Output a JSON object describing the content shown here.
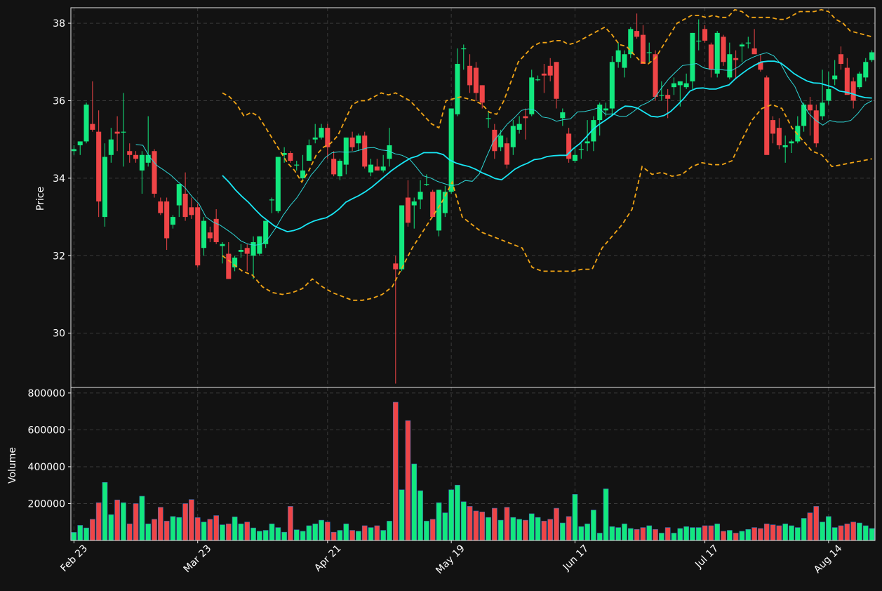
{
  "chart_data": {
    "type": "candlestick",
    "price_panel": {
      "ylabel": "Price",
      "ylim": [
        28.6,
        38.4
      ],
      "yticks": [
        30,
        32,
        34,
        36,
        38
      ],
      "series": [
        {
          "name": "candles",
          "kind": "ohlc"
        },
        {
          "name": "SMA-short",
          "color": "#2fd6d6"
        },
        {
          "name": "SMA-long",
          "color": "#18e7f5"
        },
        {
          "name": "Bollinger upper",
          "color": "#f2a516",
          "style": "dashed"
        },
        {
          "name": "Bollinger lower",
          "color": "#f2a516",
          "style": "dashed"
        }
      ]
    },
    "volume_panel": {
      "ylabel": "Volume",
      "ylim": [
        0,
        830000
      ],
      "yticks": [
        200000,
        400000,
        600000,
        800000
      ]
    },
    "xlabels": [
      "Feb 23",
      "Mar 23",
      "Apr 21",
      "May 19",
      "Jun 17",
      "Jul 17",
      "Aug 14"
    ],
    "grid": true,
    "colors": {
      "up": "#12e87e",
      "down": "#ef4547",
      "background": "#121212",
      "grid": "#3a3a3a"
    },
    "close": [
      34.7,
      34.95,
      35.9,
      35.25,
      33.4,
      34.55,
      35.0,
      34.55,
      35.15,
      35.2,
      34.35,
      34.6,
      34.6,
      34.5,
      34.72,
      33.6,
      33.1,
      33.05,
      32.45,
      33.0,
      33.35,
      33.85,
      33.0,
      33.05,
      31.75,
      32.9,
      32.4,
      32.4,
      32.27,
      31.4,
      31.7,
      32.15,
      32.05,
      32.0,
      32.35,
      32.5,
      32.9,
      33.45,
      34.55,
      34.65,
      34.45,
      34.35,
      34.2,
      34.85,
      35.05,
      35.3,
      34.8,
      34.5,
      34.1,
      35.05,
      34.8,
      35.1,
      35.1,
      34.3,
      34.35,
      34.2,
      34.3,
      34.85,
      32.0,
      31.65,
      32.85,
      33.5,
      32.75,
      33.4,
      33.85,
      33.85,
      32.65,
      33.7,
      33.1,
      35.8,
      36.95,
      37.35,
      36.4,
      36.85,
      35.95,
      35.55,
      35.05,
      34.7,
      35.1,
      34.35,
      35.35,
      35.35,
      35.55,
      36.6,
      36.55,
      36.65,
      36.9,
      36.05,
      35.7,
      34.5,
      34.6,
      34.75,
      34.95,
      35.9,
      35.75,
      35.8,
      37.0,
      37.3,
      36.85,
      37.85,
      37.65,
      36.95,
      36.95,
      36.1,
      36.0,
      36.45,
      36.5,
      37.75,
      37.55,
      36.9,
      37.8,
      36.8,
      37.15,
      36.6,
      37.4,
      37.5,
      37.2,
      36.8,
      34.6,
      35.55,
      34.85,
      34.85,
      34.95,
      35.35,
      35.9,
      35.5,
      34.9,
      35.6,
      36.65,
      36.95,
      36.25,
      36.35,
      36.7,
      36.95,
      37.3
    ],
    "sma_short_start": 10,
    "sma_short": [
      34.87,
      34.85,
      34.54,
      34.33,
      34.21,
      34.08,
      33.91,
      33.76,
      33.53,
      33.34,
      33.0,
      32.87,
      32.79,
      32.67,
      32.54,
      32.38,
      32.3,
      32.27,
      32.3,
      32.47,
      32.73,
      33.04,
      33.29,
      33.5,
      33.78,
      34.08,
      34.29,
      34.53,
      34.66,
      34.68,
      34.67,
      34.68,
      34.73,
      34.78,
      34.79,
      34.73,
      34.71,
      34.63,
      34.59,
      34.5,
      34.29,
      34.06,
      34.01,
      33.92,
      33.86,
      33.8,
      33.84,
      33.94,
      33.92,
      34.11,
      34.54,
      34.95,
      35.17,
      35.4,
      35.56,
      35.75,
      35.79,
      35.75,
      35.58,
      35.55,
      35.47,
      35.51,
      35.53,
      35.71,
      35.72,
      35.76,
      35.82,
      35.65,
      35.66,
      35.6,
      35.6,
      35.72,
      35.87,
      35.95,
      36.07,
      36.33,
      36.56,
      36.74,
      36.91,
      36.93,
      36.96,
      36.85,
      36.81,
      36.81,
      36.79,
      36.78,
      36.88,
      37.03,
      37.12,
      37.19,
      37.24,
      37.16,
      36.95,
      36.62,
      36.37,
      35.96,
      35.67,
      35.49,
      35.37,
      35.49,
      35.45,
      35.45,
      35.49,
      35.67,
      35.9,
      36.0
    ],
    "sma_long_start": 24,
    "sma_long": [
      34.07,
      33.9,
      33.7,
      33.53,
      33.38,
      33.2,
      33.03,
      32.9,
      32.77,
      32.69,
      32.62,
      32.65,
      32.71,
      32.81,
      32.89,
      32.94,
      32.98,
      33.08,
      33.21,
      33.38,
      33.47,
      33.55,
      33.65,
      33.77,
      33.91,
      34.05,
      34.19,
      34.31,
      34.42,
      34.52,
      34.57,
      34.66,
      34.66,
      34.66,
      34.61,
      34.47,
      34.39,
      34.34,
      34.3,
      34.23,
      34.14,
      34.07,
      33.99,
      33.96,
      34.09,
      34.23,
      34.32,
      34.39,
      34.48,
      34.5,
      34.56,
      34.58,
      34.59,
      34.59,
      34.76,
      34.89,
      35.06,
      35.25,
      35.39,
      35.5,
      35.62,
      35.76,
      35.86,
      35.85,
      35.8,
      35.7,
      35.6,
      35.58,
      35.62,
      35.72,
      35.88,
      36.05,
      36.25,
      36.32,
      36.33,
      36.3,
      36.3,
      36.36,
      36.41,
      36.57,
      36.7,
      36.82,
      36.92,
      37.0,
      37.02,
      37.02,
      36.97,
      36.84,
      36.7,
      36.6,
      36.51,
      36.46,
      36.45,
      36.4,
      36.35,
      36.25,
      36.22,
      36.18,
      36.12,
      36.08,
      36.07
    ],
    "bb_upper": [
      36.2,
      36.1,
      35.9,
      35.6,
      35.7,
      35.6,
      35.3,
      35.0,
      34.7,
      34.4,
      34.2,
      33.9,
      34.2,
      34.6,
      34.8,
      34.9,
      35.1,
      35.5,
      35.9,
      36.0,
      36.0,
      36.1,
      36.2,
      36.15,
      36.2,
      36.1,
      36.0,
      35.8,
      35.6,
      35.4,
      35.3,
      36.0,
      36.05,
      36.1,
      36.05,
      36.0,
      35.9,
      35.7,
      35.65,
      36.0,
      36.5,
      37.0,
      37.2,
      37.4,
      37.5,
      37.5,
      37.55,
      37.55,
      37.45,
      37.5,
      37.6,
      37.7,
      37.8,
      37.9,
      37.7,
      37.45,
      37.4,
      37.2,
      37.0,
      36.95,
      37.1,
      37.4,
      37.7,
      38.0,
      38.1,
      38.2,
      38.2,
      38.15,
      38.2,
      38.15,
      38.15,
      38.35,
      38.3,
      38.15,
      38.15,
      38.15,
      38.15,
      38.1,
      38.1,
      38.2,
      38.3,
      38.3,
      38.3,
      38.35,
      38.3,
      38.1,
      38.0,
      37.8,
      37.75,
      37.7,
      37.65
    ],
    "bb_lower": [
      32.0,
      31.8,
      31.6,
      31.5,
      31.2,
      31.05,
      31.0,
      31.05,
      31.15,
      31.4,
      31.2,
      31.05,
      30.95,
      30.85,
      30.85,
      30.9,
      31.0,
      31.2,
      31.7,
      32.2,
      32.6,
      33.0,
      33.4,
      33.9,
      33.0,
      32.8,
      32.6,
      32.5,
      32.4,
      32.3,
      32.2,
      31.7,
      31.6,
      31.6,
      31.6,
      31.6,
      31.65,
      31.65,
      32.2,
      32.5,
      32.8,
      33.2,
      34.3,
      34.1,
      34.15,
      34.05,
      34.1,
      34.3,
      34.4,
      34.35,
      34.35,
      34.45,
      35.0,
      35.5,
      35.8,
      35.9,
      35.8,
      35.3,
      35.0,
      34.7,
      34.6,
      34.3,
      34.35,
      34.4,
      34.45,
      34.5
    ],
    "bars": [
      [
        34.7,
        34.85,
        34.6,
        34.75,
        44000
      ],
      [
        34.85,
        34.95,
        34.6,
        34.95,
        82000
      ],
      [
        34.95,
        35.95,
        34.9,
        35.9,
        68000
      ],
      [
        35.4,
        36.5,
        35.2,
        35.25,
        115000
      ],
      [
        35.2,
        35.75,
        33.0,
        33.4,
        205000
      ],
      [
        33.0,
        34.9,
        32.75,
        34.55,
        315000
      ],
      [
        34.6,
        35.3,
        34.4,
        35.0,
        140000
      ],
      [
        35.2,
        35.6,
        34.7,
        35.15,
        220000
      ],
      [
        35.2,
        36.2,
        34.3,
        35.2,
        205000
      ],
      [
        34.7,
        34.9,
        34.4,
        34.6,
        90000
      ],
      [
        34.6,
        34.7,
        34.4,
        34.5,
        200000
      ],
      [
        34.2,
        34.7,
        33.6,
        34.6,
        240000
      ],
      [
        34.4,
        35.6,
        34.3,
        34.6,
        90000
      ],
      [
        34.7,
        34.75,
        33.5,
        33.6,
        115000
      ],
      [
        33.4,
        33.5,
        33.05,
        33.1,
        180000
      ],
      [
        33.4,
        33.5,
        32.15,
        32.45,
        105000
      ],
      [
        32.8,
        33.05,
        32.7,
        33.0,
        130000
      ],
      [
        33.3,
        33.85,
        33.0,
        33.85,
        125000
      ],
      [
        33.6,
        34.15,
        32.9,
        33.0,
        200000
      ],
      [
        33.25,
        33.5,
        32.95,
        33.05,
        222000
      ],
      [
        33.25,
        33.35,
        31.7,
        31.75,
        124000
      ],
      [
        32.2,
        33.0,
        32.0,
        32.9,
        100000
      ],
      [
        32.6,
        32.75,
        32.35,
        32.45,
        115000
      ],
      [
        32.95,
        33.2,
        32.3,
        32.35,
        135000
      ],
      [
        32.25,
        32.35,
        31.8,
        32.3,
        85000
      ],
      [
        32.05,
        32.35,
        31.4,
        31.4,
        90000
      ],
      [
        31.7,
        32.0,
        31.6,
        31.95,
        128000
      ],
      [
        32.1,
        32.3,
        31.95,
        32.15,
        90000
      ],
      [
        32.2,
        32.3,
        31.6,
        32.05,
        100000
      ],
      [
        32.0,
        32.5,
        31.4,
        32.35,
        68000
      ],
      [
        32.05,
        32.5,
        32.0,
        32.5,
        50000
      ],
      [
        32.3,
        32.9,
        32.2,
        32.9,
        55000
      ],
      [
        33.45,
        33.5,
        33.1,
        33.45,
        90000
      ],
      [
        33.15,
        34.55,
        33.1,
        34.55,
        70000
      ],
      [
        34.6,
        34.8,
        34.4,
        34.65,
        45000
      ],
      [
        34.65,
        34.7,
        34.4,
        34.45,
        185000
      ],
      [
        34.35,
        34.45,
        34.2,
        34.35,
        58000
      ],
      [
        34.0,
        34.6,
        33.95,
        34.2,
        50000
      ],
      [
        34.45,
        35.0,
        34.45,
        34.85,
        80000
      ],
      [
        35.0,
        35.4,
        34.9,
        35.05,
        90000
      ],
      [
        35.05,
        35.4,
        35.0,
        35.3,
        110000
      ],
      [
        35.3,
        35.4,
        34.5,
        34.8,
        100000
      ],
      [
        34.5,
        34.7,
        34.05,
        34.1,
        45000
      ],
      [
        34.05,
        34.5,
        33.95,
        34.45,
        55000
      ],
      [
        34.35,
        35.05,
        34.1,
        35.05,
        90000
      ],
      [
        35.05,
        35.2,
        34.7,
        34.8,
        55000
      ],
      [
        34.9,
        35.15,
        34.7,
        35.1,
        50000
      ],
      [
        35.1,
        35.2,
        34.25,
        34.3,
        80000
      ],
      [
        34.15,
        34.5,
        34.05,
        34.35,
        70000
      ],
      [
        34.3,
        34.5,
        34.2,
        34.2,
        80000
      ],
      [
        34.2,
        34.6,
        34.15,
        34.3,
        55000
      ],
      [
        34.5,
        35.3,
        34.3,
        34.85,
        105000
      ],
      [
        31.8,
        32.0,
        28.7,
        31.65,
        750000
      ],
      [
        31.65,
        33.3,
        31.6,
        33.3,
        275000
      ],
      [
        33.5,
        33.95,
        32.75,
        32.85,
        650000
      ],
      [
        33.3,
        33.5,
        32.7,
        33.4,
        415000
      ],
      [
        33.45,
        33.95,
        33.2,
        33.65,
        270000
      ],
      [
        33.85,
        34.1,
        33.8,
        33.85,
        105000
      ],
      [
        33.65,
        33.7,
        33.0,
        33.0,
        115000
      ],
      [
        32.65,
        33.7,
        32.5,
        33.7,
        205000
      ],
      [
        33.1,
        33.8,
        33.0,
        33.65,
        150000
      ],
      [
        33.65,
        35.8,
        33.6,
        35.8,
        275000
      ],
      [
        35.65,
        37.35,
        35.6,
        36.95,
        300000
      ],
      [
        37.35,
        37.45,
        36.8,
        37.35,
        210000
      ],
      [
        36.9,
        37.2,
        36.2,
        36.4,
        185000
      ],
      [
        36.85,
        37.0,
        36.0,
        36.2,
        160000
      ],
      [
        36.4,
        36.4,
        35.8,
        35.95,
        155000
      ],
      [
        35.55,
        35.7,
        35.3,
        35.55,
        125000
      ],
      [
        35.25,
        35.4,
        34.5,
        34.7,
        175000
      ],
      [
        34.8,
        35.25,
        34.7,
        35.1,
        110000
      ],
      [
        34.9,
        35.05,
        34.25,
        34.35,
        180000
      ],
      [
        34.8,
        35.5,
        34.6,
        35.35,
        125000
      ],
      [
        35.25,
        35.6,
        35.15,
        35.4,
        115000
      ],
      [
        35.6,
        35.8,
        35.0,
        35.55,
        110000
      ],
      [
        35.65,
        36.8,
        35.6,
        36.6,
        145000
      ],
      [
        36.55,
        36.65,
        36.5,
        36.55,
        125000
      ],
      [
        36.7,
        36.95,
        36.2,
        36.65,
        105000
      ],
      [
        36.9,
        37.1,
        36.5,
        36.65,
        115000
      ],
      [
        37.0,
        37.0,
        35.8,
        36.05,
        175000
      ],
      [
        35.55,
        35.8,
        35.35,
        35.7,
        95000
      ],
      [
        35.15,
        35.3,
        34.4,
        34.5,
        130000
      ],
      [
        34.45,
        34.8,
        34.4,
        34.6,
        250000
      ],
      [
        34.75,
        34.9,
        34.5,
        34.75,
        75000
      ],
      [
        34.9,
        35.5,
        34.7,
        34.95,
        90000
      ],
      [
        34.95,
        35.6,
        34.7,
        35.5,
        165000
      ],
      [
        35.5,
        35.95,
        35.1,
        35.9,
        40000
      ],
      [
        35.75,
        35.95,
        35.6,
        35.8,
        280000
      ],
      [
        35.8,
        37.15,
        35.6,
        37.0,
        75000
      ],
      [
        37.0,
        37.5,
        36.85,
        37.3,
        70000
      ],
      [
        36.85,
        37.3,
        36.6,
        37.2,
        90000
      ],
      [
        37.2,
        37.9,
        37.1,
        37.85,
        65000
      ],
      [
        37.8,
        38.25,
        37.6,
        37.65,
        60000
      ],
      [
        37.7,
        37.95,
        37.1,
        36.95,
        70000
      ],
      [
        37.25,
        37.5,
        37.0,
        37.25,
        80000
      ],
      [
        37.2,
        37.3,
        36.0,
        36.1,
        60000
      ],
      [
        36.15,
        36.5,
        36.0,
        36.15,
        40000
      ],
      [
        36.15,
        36.3,
        35.55,
        36.05,
        70000
      ],
      [
        36.35,
        36.6,
        36.15,
        36.45,
        40000
      ],
      [
        36.4,
        36.5,
        35.85,
        36.5,
        65000
      ],
      [
        36.35,
        36.7,
        36.3,
        36.45,
        75000
      ],
      [
        36.5,
        37.75,
        36.3,
        37.75,
        70000
      ],
      [
        37.55,
        38.1,
        37.3,
        37.55,
        70000
      ],
      [
        37.85,
        37.95,
        37.5,
        37.55,
        80000
      ],
      [
        37.45,
        37.5,
        36.6,
        36.8,
        80000
      ],
      [
        36.7,
        37.8,
        36.6,
        37.75,
        90000
      ],
      [
        37.65,
        37.7,
        36.9,
        37.0,
        50000
      ],
      [
        36.6,
        37.5,
        36.55,
        37.2,
        55000
      ],
      [
        37.1,
        37.3,
        36.55,
        37.05,
        40000
      ],
      [
        37.4,
        37.5,
        37.0,
        37.45,
        50000
      ],
      [
        37.5,
        37.65,
        37.35,
        37.5,
        60000
      ],
      [
        37.35,
        37.85,
        37.25,
        37.2,
        70000
      ],
      [
        37.0,
        37.2,
        36.75,
        36.8,
        65000
      ],
      [
        36.6,
        36.65,
        35.35,
        34.6,
        90000
      ],
      [
        35.5,
        35.6,
        34.9,
        35.15,
        85000
      ],
      [
        35.3,
        35.55,
        34.75,
        34.85,
        80000
      ],
      [
        34.8,
        35.1,
        34.4,
        34.85,
        90000
      ],
      [
        34.9,
        35.0,
        34.65,
        34.95,
        80000
      ],
      [
        34.95,
        35.6,
        34.9,
        35.35,
        70000
      ],
      [
        35.35,
        35.95,
        35.2,
        35.9,
        120000
      ],
      [
        35.9,
        36.1,
        35.1,
        35.75,
        150000
      ],
      [
        35.75,
        35.9,
        34.8,
        34.9,
        185000
      ],
      [
        35.6,
        36.8,
        35.5,
        35.95,
        100000
      ],
      [
        36.0,
        36.75,
        35.9,
        36.3,
        130000
      ],
      [
        36.55,
        37.05,
        36.4,
        36.65,
        70000
      ],
      [
        37.2,
        37.4,
        36.8,
        36.95,
        80000
      ],
      [
        36.85,
        37.1,
        36.25,
        36.15,
        90000
      ],
      [
        36.5,
        36.6,
        35.8,
        36.0,
        100000
      ],
      [
        36.35,
        36.75,
        36.3,
        36.7,
        95000
      ],
      [
        36.6,
        37.1,
        36.5,
        37.0,
        80000
      ],
      [
        37.05,
        37.3,
        37.0,
        37.25,
        65000
      ]
    ]
  }
}
